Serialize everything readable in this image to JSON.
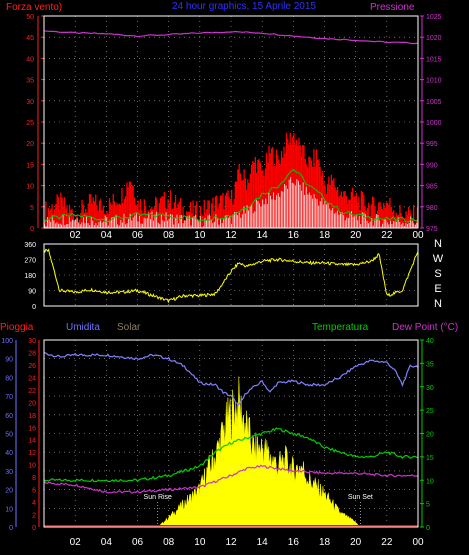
{
  "chart_data": [
    {
      "type": "line",
      "title": "24 hour graphics, 15 Aprile 2015",
      "ylabel_left": "Forza vento)",
      "ylabel_right": "Pressione",
      "left_axis": {
        "min": 0,
        "max": 50,
        "ticks": [
          "0",
          "5",
          "10",
          "15",
          "20",
          "25",
          "30",
          "35",
          "40",
          "45",
          "50"
        ]
      },
      "right_axis": {
        "min": 975,
        "max": 1025,
        "ticks": [
          "975",
          "980",
          "985",
          "990",
          "995",
          "1000",
          "1005",
          "1010",
          "1015",
          "1020",
          "1025"
        ]
      },
      "x_ticks": [
        "02",
        "04",
        "06",
        "08",
        "10",
        "12",
        "14",
        "16",
        "18",
        "20",
        "22",
        "00"
      ],
      "grid": true,
      "colors": {
        "gust": "#ff0000",
        "wind": "#00cc00",
        "pressure": "#cc33cc",
        "avg": "#ffffff"
      },
      "pressure": {
        "x": [
          0,
          2,
          4,
          6,
          8,
          10,
          12,
          14,
          16,
          18,
          20,
          22,
          24
        ],
        "y": [
          1021.5,
          1021,
          1020.8,
          1020.3,
          1020.6,
          1021,
          1021.3,
          1021,
          1020.3,
          1019.7,
          1019.3,
          1018.8,
          1018.6
        ]
      },
      "gust": {
        "x": [
          0,
          1,
          2,
          3,
          4,
          5,
          5.5,
          6,
          7,
          8,
          9,
          10,
          11,
          12,
          12.5,
          13,
          13.5,
          14,
          14.5,
          15,
          15.5,
          16,
          16.5,
          17,
          17.5,
          18,
          18.5,
          19,
          20,
          21,
          22,
          23,
          24
        ],
        "y": [
          4,
          6,
          3,
          6,
          5,
          8,
          12,
          6,
          5,
          7,
          4,
          4,
          6,
          7,
          13,
          11,
          16,
          13,
          18,
          16,
          20,
          22,
          18,
          15,
          17,
          10,
          11,
          8,
          7,
          5,
          6,
          3,
          3
        ]
      },
      "wind": {
        "x": [
          0,
          2,
          4,
          6,
          8,
          10,
          12,
          13,
          14,
          15,
          16,
          17,
          18,
          19,
          20,
          22,
          24
        ],
        "y": [
          2,
          3,
          2,
          3,
          3,
          2,
          3,
          5,
          8,
          10,
          14,
          10,
          7,
          4,
          3,
          2,
          2
        ]
      }
    },
    {
      "type": "line",
      "title": "",
      "left_axis": {
        "min": 0,
        "max": 360,
        "ticks": [
          "0",
          "90",
          "180",
          "270",
          "360"
        ]
      },
      "right_labels": [
        "N",
        "W",
        "S",
        "E",
        "N"
      ],
      "x_ticks": [
        "02",
        "04",
        "06",
        "08",
        "10",
        "12",
        "14",
        "16",
        "18",
        "20",
        "22",
        "00"
      ],
      "colors": {
        "direction": "#ffff00"
      },
      "direction": {
        "x": [
          0,
          0.3,
          1,
          2,
          3,
          4,
          5,
          6,
          7,
          8,
          9,
          10,
          11,
          12,
          12.5,
          13,
          14,
          15,
          16,
          17,
          18,
          19,
          20,
          21,
          21.5,
          22,
          23,
          24
        ],
        "y": [
          320,
          320,
          90,
          80,
          95,
          80,
          80,
          90,
          60,
          30,
          60,
          60,
          70,
          200,
          250,
          230,
          260,
          270,
          260,
          250,
          250,
          240,
          240,
          260,
          300,
          60,
          90,
          320
        ]
      }
    },
    {
      "type": "line",
      "title": "",
      "series_labels": {
        "rain": "Pioggia",
        "humidity": "Umidita",
        "solar": "Solar",
        "temperature": "Temperatura",
        "dewpoint": "Dew Point (°C)"
      },
      "rain_axis": {
        "min": 0,
        "max": 30,
        "ticks": [
          "0",
          "2",
          "4",
          "6",
          "8",
          "10",
          "12",
          "14",
          "16",
          "18",
          "20",
          "22",
          "24",
          "26",
          "28",
          "30"
        ]
      },
      "humidity_axis": {
        "min": 0,
        "max": 100,
        "ticks": [
          "0",
          "10",
          "20",
          "30",
          "40",
          "50",
          "60",
          "70",
          "80",
          "90",
          "100"
        ]
      },
      "temp_axis": {
        "min": 0,
        "max": 40,
        "ticks": [
          "0",
          "5",
          "10",
          "15",
          "20",
          "25",
          "30",
          "35",
          "40"
        ]
      },
      "x_ticks": [
        "02",
        "04",
        "06",
        "08",
        "10",
        "12",
        "14",
        "16",
        "18",
        "20",
        "22",
        "00"
      ],
      "annotations": {
        "sunrise": "Sun Rise",
        "sunset": "Sun Set"
      },
      "sunrise_x": 7.3,
      "sunset_x": 20.3,
      "colors": {
        "rain": "#ff0000",
        "humidity": "#8080ff",
        "solar": "#ffff00",
        "temperature": "#00cc00",
        "dewpoint": "#cc33cc"
      },
      "humidity": {
        "x": [
          0,
          1,
          2,
          3,
          4,
          5,
          6,
          7,
          8,
          9,
          10,
          11,
          11.5,
          12,
          12.5,
          13,
          14,
          14.5,
          15,
          16,
          17,
          18,
          19,
          20,
          21,
          22,
          22.5,
          23,
          23.5,
          24
        ],
        "y": [
          93,
          91,
          92,
          92,
          92,
          91,
          90,
          92,
          90,
          86,
          77,
          76,
          72,
          70,
          65,
          72,
          78,
          72,
          77,
          78,
          76,
          76,
          80,
          86,
          89,
          88,
          84,
          76,
          86,
          86
        ]
      },
      "dewpoint": {
        "x": [
          0,
          2,
          4,
          6,
          8,
          10,
          12,
          13,
          14,
          16,
          18,
          20,
          22,
          24
        ],
        "y": [
          9.5,
          9,
          7.5,
          7.5,
          8,
          8.5,
          11,
          12.5,
          13,
          12,
          11.5,
          11.5,
          11,
          11
        ]
      },
      "temperature": {
        "x": [
          0,
          2,
          4,
          6,
          8,
          9,
          10,
          11,
          12,
          13,
          14,
          15,
          16,
          17,
          18,
          20,
          21,
          22,
          23,
          24
        ],
        "y": [
          10,
          10,
          10,
          10,
          11,
          12,
          13,
          16,
          18,
          19,
          20,
          21,
          20,
          19,
          17,
          15,
          15,
          16,
          15,
          15
        ]
      },
      "solar": {
        "x": [
          7.3,
          8,
          9,
          10,
          10.5,
          11,
          11.5,
          12,
          12.5,
          13,
          13.5,
          14,
          14.5,
          15,
          15.5,
          16,
          16.5,
          17,
          18,
          19,
          20,
          20.3
        ],
        "y": [
          0,
          2,
          5,
          8,
          12,
          15,
          20,
          24,
          26,
          21,
          16,
          17,
          15,
          13,
          14,
          12,
          13,
          10,
          7,
          3,
          1,
          0
        ]
      }
    }
  ]
}
